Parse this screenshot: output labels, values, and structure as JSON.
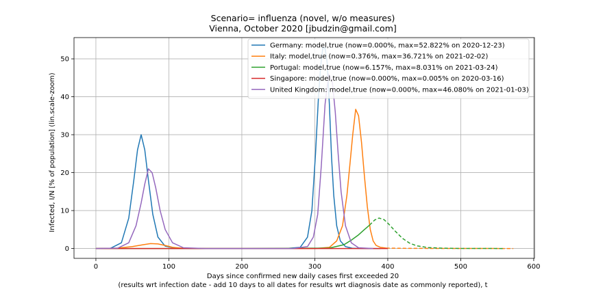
{
  "chart_data": {
    "type": "line",
    "title_line1": "Scenario= influenza (novel, w/o measures)",
    "title_line2": "Vienna, October 2020 [jbudzin@gmail.com]",
    "xlabel_line1": "Days since confirmed new daily cases first exceeded 20",
    "xlabel_line2": "(results wrt infection date - add 10 days to all dates for results wrt diagnosis date as commonly reported), t",
    "ylabel": "Infected, I/N [% of population] (lin.scale-zoom)",
    "xlim": [
      -30,
      601
    ],
    "ylim": [
      -2.6,
      55.6
    ],
    "xticks": [
      0,
      100,
      200,
      300,
      400,
      500,
      600
    ],
    "yticks": [
      0,
      10,
      20,
      30,
      40,
      50
    ],
    "grid": true,
    "legend_position": "top-right",
    "series": [
      {
        "name": "Germany: model,true (now=0.000%, max=52.822% on 2020-12-23)",
        "color": "#1f77b4",
        "solid_x": [
          0,
          20,
          35,
          45,
          52,
          57,
          62,
          67,
          72,
          78,
          85,
          95,
          110,
          140,
          200,
          260,
          280,
          290,
          296,
          301,
          305,
          308,
          311,
          314,
          317,
          320,
          323,
          326,
          330,
          335,
          342,
          352,
          370,
          390
        ],
        "solid_y": [
          0,
          0.05,
          1.5,
          8,
          18,
          26,
          30,
          26,
          18,
          9,
          3,
          0.6,
          0.05,
          0,
          0,
          0,
          0.3,
          3,
          10,
          25,
          40,
          48,
          53,
          52.8,
          49,
          38,
          24,
          14,
          6,
          2,
          0.5,
          0.05,
          0,
          0
        ],
        "dashed_x": [],
        "dashed_y": []
      },
      {
        "name": "Italy: model,true (now=0.376%, max=36.721% on 2021-02-02)",
        "color": "#ff7f0e",
        "solid_x": [
          0,
          30,
          50,
          65,
          75,
          85,
          95,
          105,
          120,
          160,
          200,
          300,
          320,
          330,
          338,
          344,
          348,
          352,
          356,
          360,
          364,
          368,
          372,
          376,
          380,
          384,
          390,
          398
        ],
        "solid_y": [
          0,
          0.1,
          0.5,
          1.0,
          1.3,
          1.2,
          0.8,
          0.3,
          0.05,
          0,
          0,
          0,
          0.3,
          2,
          6,
          14,
          22,
          30,
          36.7,
          35,
          28,
          19,
          11,
          5,
          2,
          0.8,
          0.3,
          0.1
        ],
        "dashed_x": [
          398,
          420,
          470,
          520,
          572
        ],
        "dashed_y": [
          0.1,
          0.05,
          0.02,
          0.01,
          0
        ]
      },
      {
        "name": "Portugal: model,true (now=6.157%, max=8.031% on 2021-03-24)",
        "color": "#2ca02c",
        "solid_x": [
          0,
          200,
          320,
          340,
          350,
          360,
          368,
          375
        ],
        "solid_y": [
          0,
          0,
          0.1,
          1,
          2.2,
          3.6,
          5,
          6.157
        ],
        "dashed_x": [
          375,
          382,
          388,
          395,
          402,
          410,
          420,
          430,
          440,
          455,
          475,
          500,
          530,
          560
        ],
        "dashed_y": [
          6.157,
          7.5,
          8.031,
          7.6,
          6.3,
          4.6,
          2.7,
          1.4,
          0.7,
          0.25,
          0.08,
          0.02,
          0.005,
          0
        ]
      },
      {
        "name": "Singapore: model,true (now=0.000%, max=0.005% on 2020-03-16)",
        "color": "#d62728",
        "solid_x": [
          0,
          100,
          200,
          300,
          400
        ],
        "solid_y": [
          0,
          0,
          0,
          0,
          0
        ],
        "dashed_x": [],
        "dashed_y": []
      },
      {
        "name": "United Kingdom: model,true (now=0.000%, max=46.080% on 2021-01-03)",
        "color": "#9467bd",
        "solid_x": [
          0,
          30,
          45,
          55,
          62,
          67,
          72,
          77,
          82,
          88,
          95,
          105,
          120,
          150,
          200,
          270,
          290,
          298,
          304,
          309,
          314,
          319,
          324,
          328,
          332,
          336,
          342,
          350,
          360,
          380
        ],
        "solid_y": [
          0,
          0.1,
          1.5,
          6,
          12,
          17,
          21,
          20,
          16,
          10,
          5,
          1.5,
          0.2,
          0,
          0,
          0,
          0.5,
          3,
          9,
          22,
          38,
          46,
          44,
          36,
          25,
          15,
          6,
          1.5,
          0.2,
          0
        ],
        "dashed_x": [],
        "dashed_y": []
      }
    ]
  }
}
